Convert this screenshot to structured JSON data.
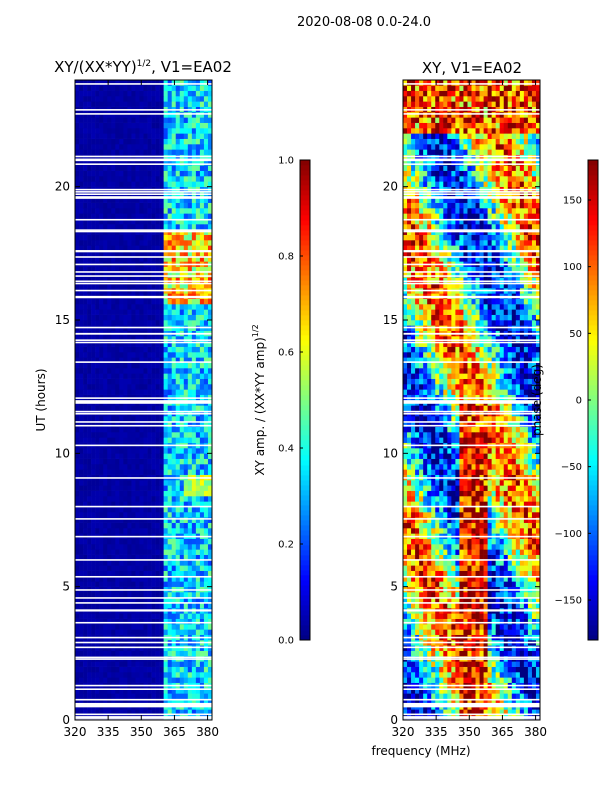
{
  "figure_title": "2020-08-08 0.0-24.0",
  "xlabel": "frequency (MHz)",
  "colors": {
    "jet": [
      "#000080",
      "#0000ff",
      "#0080ff",
      "#00ffff",
      "#80ff80",
      "#ffff00",
      "#ff8000",
      "#ff0000",
      "#800000"
    ],
    "background": "#ffffff",
    "grid": "#000000"
  },
  "chart_data": [
    {
      "type": "heatmap",
      "title": "XY/(XX*YY)",
      "title_power": "1/2",
      "title_suffix": ", V1=EA02",
      "xlabel": "",
      "ylabel": "UT (hours)",
      "xlim": [
        320,
        382
      ],
      "ylim": [
        0,
        24
      ],
      "xticks": [
        320,
        335,
        350,
        365,
        380
      ],
      "yticks": [
        0,
        5,
        10,
        15,
        20
      ],
      "colorbar": {
        "label_text": "XY amp. / (XX*YY amp)",
        "label_power": "1/2",
        "range": [
          0.0,
          1.0
        ],
        "ticks": [
          "0.0",
          "0.2",
          "0.4",
          "0.6",
          "0.8",
          "1.0"
        ],
        "tick_values": [
          0.0,
          0.2,
          0.4,
          0.6,
          0.8,
          1.0
        ]
      },
      "description": "Normalized cross amplitude; near 0 below 361 MHz, 0.2-0.5 in 361-378 MHz, peaks ~0.7-0.85 between 15.5 and 18.5 UT"
    },
    {
      "type": "heatmap",
      "title": "XY, V1=EA02",
      "xlabel": "frequency (MHz)",
      "ylabel": "",
      "xlim": [
        320,
        382
      ],
      "ylim": [
        0,
        24
      ],
      "xticks": [
        320,
        335,
        350,
        365,
        380
      ],
      "yticks": [
        0,
        5,
        10,
        15,
        20
      ],
      "colorbar": {
        "label_text": "phase (deg)",
        "range": [
          -180,
          180
        ],
        "ticks": [
          "−150",
          "−100",
          "−50",
          "0",
          "50",
          "100",
          "150"
        ],
        "tick_values": [
          -150,
          -100,
          -50,
          0,
          50,
          100,
          150
        ]
      },
      "description": "Cross-hand phase; red (~+150 deg) band 345-358 MHz below 12 UT, mixed phases elsewhere"
    }
  ]
}
